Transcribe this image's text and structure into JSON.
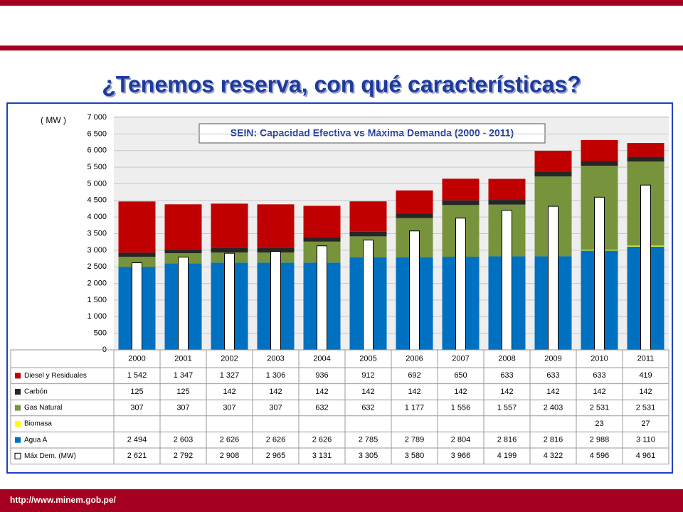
{
  "header": {
    "title": "¿Tenemos reserva, con qué características?"
  },
  "footer": {
    "url": "http://www.minem.gob.pe/"
  },
  "chart_data": {
    "type": "stacked_bar",
    "title": "SEIN: Capacidad Efectiva vs Máxima Demanda (2000 - 2011)",
    "y_label": "( MW )",
    "categories": [
      "2000",
      "2001",
      "2002",
      "2003",
      "2004",
      "2005",
      "2006",
      "2007",
      "2008",
      "2009",
      "2010",
      "2011"
    ],
    "series": [
      {
        "name": "Diesel y Residuales",
        "color": "#c00000",
        "stack": true,
        "values": [
          1542,
          1347,
          1327,
          1306,
          936,
          912,
          692,
          650,
          633,
          633,
          633,
          419
        ],
        "value_labels": [
          "1 542",
          "1 347",
          "1 327",
          "1 306",
          "936",
          "912",
          "692",
          "650",
          "633",
          "633",
          "633",
          "419"
        ]
      },
      {
        "name": "Carbón",
        "color": "#262626",
        "stack": true,
        "values": [
          125,
          125,
          142,
          142,
          142,
          142,
          142,
          142,
          142,
          142,
          142,
          142
        ]
      },
      {
        "name": "Gas Natural",
        "color": "#77933c",
        "stack": true,
        "values": [
          307,
          307,
          307,
          307,
          632,
          632,
          1177,
          1556,
          1557,
          2403,
          2531,
          2531
        ],
        "value_labels": [
          "307",
          "307",
          "307",
          "307",
          "632",
          "632",
          "1 177",
          "1 556",
          "1 557",
          "2 403",
          "2 531",
          "2 531"
        ]
      },
      {
        "name": "Biomasa",
        "color": "#ffff00",
        "stack": true,
        "values": [
          null,
          null,
          null,
          null,
          null,
          null,
          null,
          null,
          null,
          null,
          23,
          27
        ]
      },
      {
        "name": "Agua A",
        "color": "#0070c0",
        "stack": true,
        "values": [
          2494,
          2603,
          2626,
          2626,
          2626,
          2785,
          2789,
          2804,
          2816,
          2816,
          2988,
          3110
        ],
        "value_labels": [
          "2 494",
          "2 603",
          "2 626",
          "2 626",
          "2 626",
          "2 785",
          "2 789",
          "2 804",
          "2 816",
          "2 816",
          "2 988",
          "3 110"
        ]
      },
      {
        "name": "Máx Dem. (MW)",
        "color": "#ffffff",
        "stack": false,
        "values": [
          2621,
          2792,
          2908,
          2965,
          3131,
          3305,
          3580,
          3966,
          4199,
          4322,
          4596,
          4961
        ],
        "value_labels": [
          "2 621",
          "2 792",
          "2 908",
          "2 965",
          "3 131",
          "3 305",
          "3 580",
          "3 966",
          "4 199",
          "4 322",
          "4 596",
          "4 961"
        ]
      }
    ],
    "ylim": [
      0,
      7000
    ],
    "yticks": [
      0,
      500,
      {
        "value": 1000,
        "label": "1 000"
      },
      {
        "value": 1500,
        "label": "1 500"
      },
      {
        "value": 2000,
        "label": "2 000"
      },
      {
        "value": 2500,
        "label": "2 500"
      },
      {
        "value": 3000,
        "label": "3 000"
      },
      {
        "value": 3500,
        "label": "3 500"
      },
      {
        "value": 4000,
        "label": "4 000"
      },
      {
        "value": 4500,
        "label": "4 500"
      },
      {
        "value": 5000,
        "label": "5 000"
      },
      {
        "value": 5500,
        "label": "5 500"
      },
      {
        "value": 6000,
        "label": "6 000"
      },
      {
        "value": 6500,
        "label": "6 500"
      },
      {
        "value": 7000,
        "label": "7 000"
      }
    ],
    "grid": true
  }
}
